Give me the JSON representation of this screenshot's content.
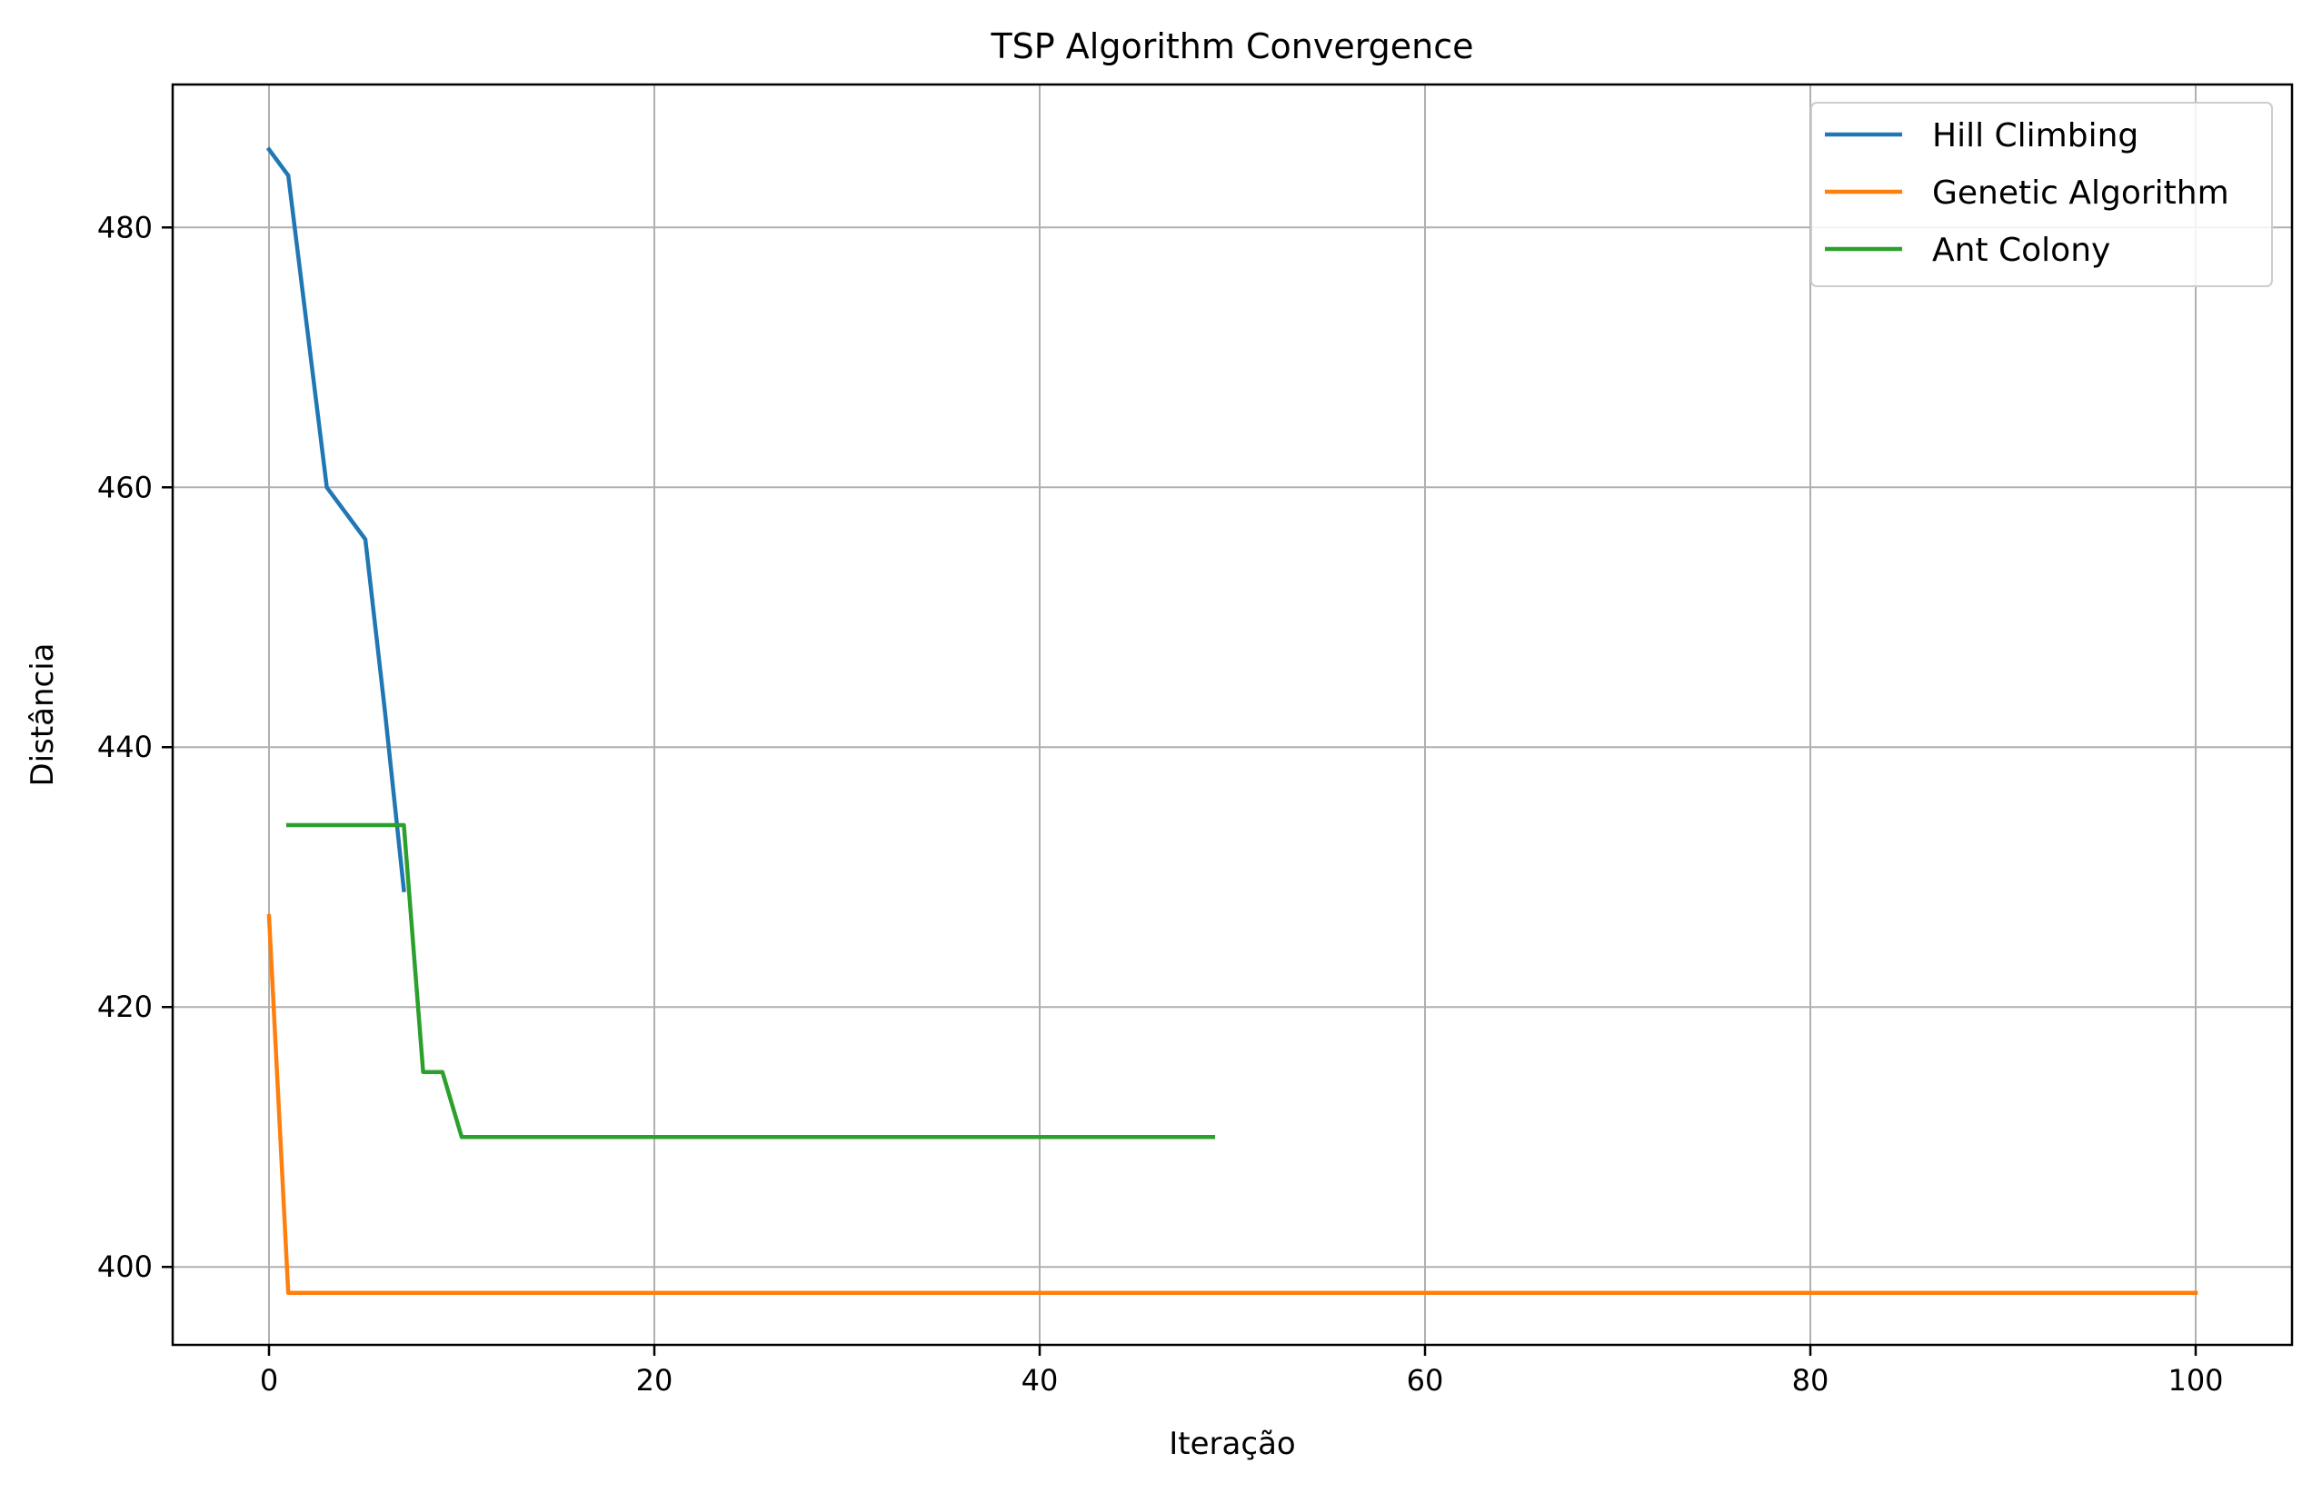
{
  "chart_data": {
    "type": "line",
    "title": "TSP Algorithm Convergence",
    "xlabel": "Iteração",
    "ylabel": "Distância",
    "xlim": [
      -5,
      105
    ],
    "ylim": [
      394,
      491
    ],
    "xticks": [
      0,
      20,
      40,
      60,
      80,
      100
    ],
    "yticks": [
      400,
      420,
      440,
      460,
      480
    ],
    "grid": true,
    "legend_position": "top-right",
    "series": [
      {
        "name": "Hill Climbing",
        "color": "#1f77b4",
        "x": [
          0,
          1,
          2,
          3,
          4,
          5,
          6,
          7
        ],
        "y": [
          486,
          484,
          472,
          460,
          458,
          456,
          443,
          429
        ]
      },
      {
        "name": "Genetic Algorithm",
        "color": "#ff7f0e",
        "x": [
          0,
          1,
          2,
          100
        ],
        "y": [
          427,
          398,
          398,
          398
        ]
      },
      {
        "name": "Ant Colony",
        "color": "#2ca02c",
        "x": [
          1,
          7,
          8,
          9,
          10,
          49
        ],
        "y": [
          434,
          434,
          415,
          415,
          410,
          410
        ]
      }
    ]
  }
}
